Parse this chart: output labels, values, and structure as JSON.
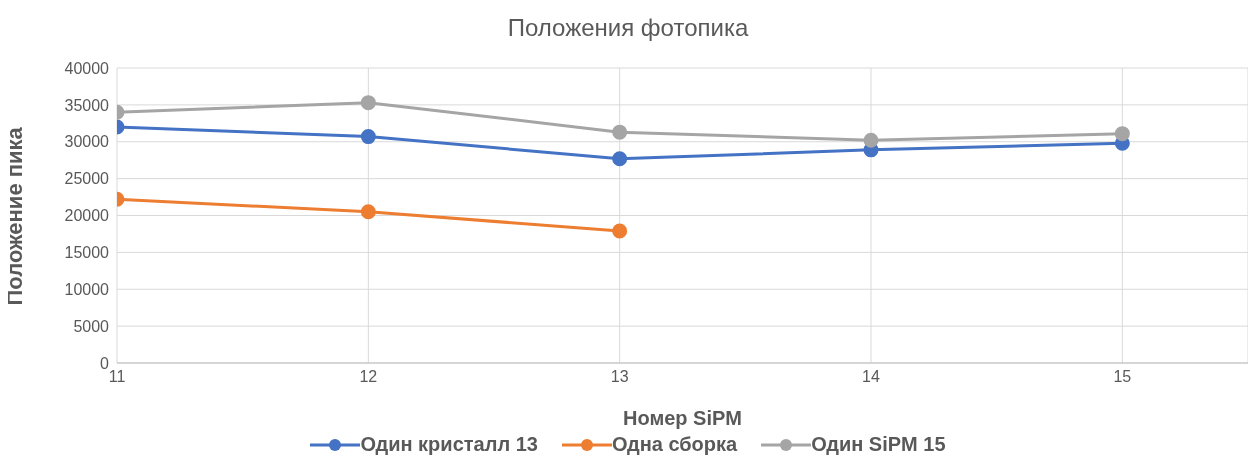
{
  "chart_data": {
    "type": "line",
    "title": "Положения фотопика",
    "xlabel": "Номер SiPM",
    "ylabel": "Положение пика",
    "x": [
      11,
      12,
      13,
      14,
      15
    ],
    "series": [
      {
        "name": "Один кристалл 13",
        "color": "#4472c4",
        "values": [
          32000,
          30700,
          27700,
          28900,
          29800
        ]
      },
      {
        "name": "Одна сборка",
        "color": "#ed7d31",
        "values": [
          22200,
          20500,
          17900,
          null,
          null
        ]
      },
      {
        "name": "Один SiPM 15",
        "color": "#a5a5a5",
        "values": [
          34000,
          35300,
          31300,
          30200,
          31100
        ]
      }
    ],
    "xlim": [
      11,
      15.5
    ],
    "xticks": [
      11,
      12,
      13,
      14,
      15
    ],
    "ylim": [
      0,
      40000
    ],
    "yticks": [
      0,
      5000,
      10000,
      15000,
      20000,
      25000,
      30000,
      35000,
      40000
    ],
    "grid": true,
    "legend": "bottom",
    "marker": "circle",
    "line_style": "solid"
  }
}
